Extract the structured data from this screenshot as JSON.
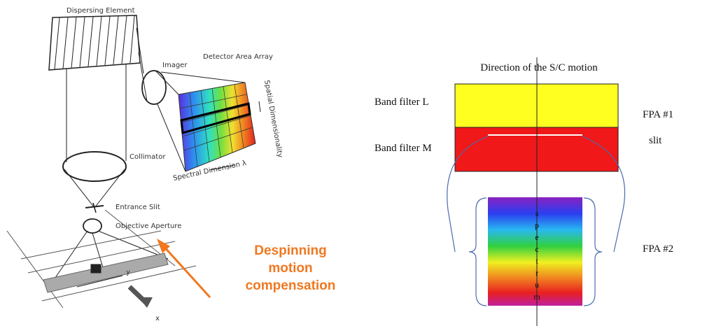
{
  "left": {
    "dispersing_element": "Dispersing Element",
    "imager": "Imager",
    "detector": "Detector Area Array",
    "spatial": "Spatial Dimensionality",
    "spectral": "Spectral Dimension λ",
    "collimator": "Collimator",
    "entrance_slit": "Entrance Slit",
    "objective_aperture": "Objective Aperture",
    "y_label": "y",
    "x_label": "x",
    "despinning": [
      "Despinning",
      "motion",
      "compensation"
    ]
  },
  "right": {
    "title": "Direction of the S/C motion",
    "band_l": "Band filter L",
    "band_m": "Band filter M",
    "fpa1": "FPA #1",
    "slit": "slit",
    "fpa2": "FPA #2",
    "spectrum": "spectrum"
  }
}
